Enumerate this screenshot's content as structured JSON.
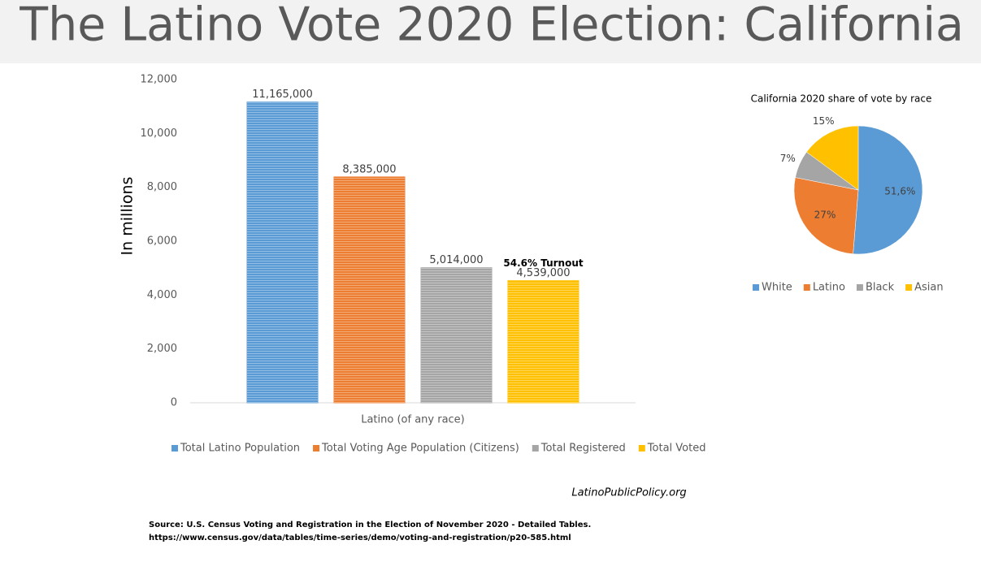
{
  "title": "The Latino Vote 2020 Election: California",
  "chart_data": [
    {
      "type": "bar",
      "y_label": "In millions",
      "categories": [
        "Latino (of any race)"
      ],
      "series": [
        {
          "name": "Total Latino Population",
          "color": "#5b9bd5",
          "values": [
            11165
          ],
          "value_labels": [
            "11,165,000"
          ]
        },
        {
          "name": "Total Voting Age Population (Citizens)",
          "color": "#ed7d31",
          "values": [
            8385
          ],
          "value_labels": [
            "8,385,000"
          ]
        },
        {
          "name": "Total Registered",
          "color": "#a5a5a5",
          "values": [
            5014
          ],
          "value_labels": [
            "5,014,000"
          ]
        },
        {
          "name": "Total Voted",
          "color": "#ffc000",
          "values": [
            4539
          ],
          "value_labels": [
            "4,539,000"
          ]
        }
      ],
      "annotation": "54.6% Turnout",
      "ylim": [
        0,
        12000
      ],
      "yticks": [
        0,
        {
          "value": 2000,
          "label": "2,000"
        },
        {
          "value": 4000,
          "label": "4,000"
        },
        {
          "value": 6000,
          "label": "6,000"
        },
        {
          "value": 8000,
          "label": "8,000"
        },
        {
          "value": 10000,
          "label": "10,000"
        },
        {
          "value": 12000,
          "label": "12,000"
        }
      ],
      "legend": "bottom"
    },
    {
      "type": "pie",
      "title": "California 2020 share of vote by race",
      "categories": [
        "White",
        "Latino",
        "Black",
        "Asian"
      ],
      "values": [
        51.6,
        27,
        7,
        15
      ],
      "value_labels": [
        "51,6%",
        "27%",
        "7%",
        "15%"
      ],
      "colors": [
        "#5b9bd5",
        "#ed7d31",
        "#a5a5a5",
        "#ffc000"
      ],
      "legend": "bottom"
    }
  ],
  "credit": "LatinoPublicPolicy.org",
  "source": [
    "Source: U.S. Census  Voting and Registration in the Election of November 2020 - Detailed Tables.",
    "https://www.census.gov/data/tables/time-series/demo/voting-and-registration/p20-585.html"
  ]
}
